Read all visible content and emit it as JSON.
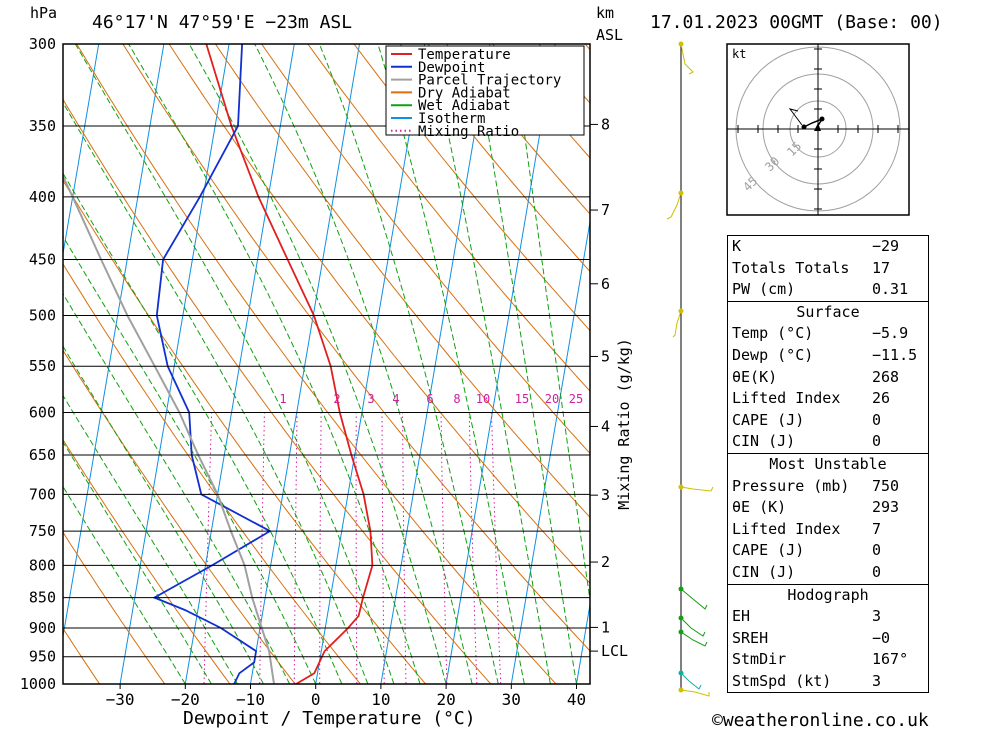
{
  "header": {
    "hpa_label": "hPa",
    "location": "46°17'N  47°59'E  −23m  ASL",
    "km_label": "km",
    "asl_label": "ASL",
    "datetime": "17.01.2023  00GMT  (Base: 00)"
  },
  "chart_data": {
    "type": "line",
    "title": "46°17'N  47°59'E  −23m  ASL",
    "xlabel": "Dewpoint / Temperature (°C)",
    "ylabel": "hPa",
    "xlim": [
      -40,
      40
    ],
    "pressure_levels": [
      300,
      350,
      400,
      450,
      500,
      550,
      600,
      650,
      700,
      750,
      800,
      850,
      900,
      950,
      1000
    ],
    "x_ticks": [
      -30,
      -20,
      -10,
      0,
      10,
      20,
      30,
      40
    ],
    "km_ticks": [
      {
        "km": "8",
        "p": 349
      },
      {
        "km": "7",
        "p": 410
      },
      {
        "km": "6",
        "p": 471
      },
      {
        "km": "5",
        "p": 540
      },
      {
        "km": "4",
        "p": 616
      },
      {
        "km": "3",
        "p": 701
      },
      {
        "km": "2",
        "p": 795
      },
      {
        "km": "1",
        "p": 899
      },
      {
        "km": "LCL",
        "p": 940
      }
    ],
    "mixing_ratio_label": "Mixing Ratio (g/kg)",
    "mixing_ratio_values": [
      "1",
      "2",
      "3",
      "4",
      "6",
      "8",
      "10",
      "15",
      "20",
      "25"
    ],
    "legend": [
      "Temperature",
      "Dewpoint",
      "Parcel Trajectory",
      "Dry Adiabat",
      "Wet Adiabat",
      "Isotherm",
      "Mixing Ratio"
    ],
    "colors": {
      "temperature": "#e02020",
      "dewpoint": "#1030d0",
      "parcel": "#a0a0a0",
      "dry_adiabat": "#d87010",
      "wet_adiabat": "#10a010",
      "isotherm": "#1090e0",
      "mixing_ratio": "#d020a0",
      "wind": "#d0c000"
    },
    "series": [
      {
        "name": "Temperature",
        "points": [
          [
            1019,
            -5.9
          ],
          [
            1000,
            -3
          ],
          [
            980,
            -0.5
          ],
          [
            960,
            0
          ],
          [
            940,
            0.5
          ],
          [
            920,
            2
          ],
          [
            900,
            3.5
          ],
          [
            880,
            4.8
          ],
          [
            850,
            5
          ],
          [
            800,
            5.6
          ],
          [
            750,
            4.4
          ],
          [
            700,
            2.4
          ],
          [
            650,
            -0.5
          ],
          [
            600,
            -3.4
          ],
          [
            550,
            -6
          ],
          [
            500,
            -9.9
          ],
          [
            450,
            -15.4
          ],
          [
            400,
            -21.5
          ],
          [
            350,
            -27.5
          ],
          [
            300,
            -33.5
          ]
        ]
      },
      {
        "name": "Dewpoint",
        "points": [
          [
            1019,
            -11.5
          ],
          [
            1000,
            -12.5
          ],
          [
            980,
            -12
          ],
          [
            960,
            -10
          ],
          [
            940,
            -10
          ],
          [
            900,
            -16
          ],
          [
            870,
            -22
          ],
          [
            850,
            -27
          ],
          [
            800,
            -19
          ],
          [
            750,
            -11
          ],
          [
            700,
            -22.5
          ],
          [
            650,
            -25
          ],
          [
            600,
            -26.5
          ],
          [
            550,
            -31
          ],
          [
            500,
            -34
          ],
          [
            450,
            -34.5
          ],
          [
            400,
            -30.5
          ],
          [
            350,
            -26.5
          ],
          [
            300,
            -28
          ]
        ]
      },
      {
        "name": "Parcel Trajectory",
        "points": [
          [
            1019,
            -5.9
          ],
          [
            940,
            -8
          ],
          [
            850,
            -12
          ],
          [
            800,
            -14
          ],
          [
            750,
            -17
          ],
          [
            700,
            -20
          ],
          [
            650,
            -24
          ],
          [
            600,
            -28
          ],
          [
            550,
            -33
          ],
          [
            500,
            -38.5
          ],
          [
            450,
            -44
          ],
          [
            400,
            -50
          ],
          [
            350,
            -57
          ],
          [
            300,
            -65
          ]
        ]
      }
    ],
    "grid": true
  },
  "indices": [
    {
      "label": "K",
      "value": "−29"
    },
    {
      "label": "Totals Totals",
      "value": "17"
    },
    {
      "label": "PW (cm)",
      "value": "0.31"
    }
  ],
  "surface": {
    "title": "Surface",
    "rows": [
      {
        "label": "Temp (°C)",
        "value": "−5.9"
      },
      {
        "label": "Dewp (°C)",
        "value": "−11.5"
      },
      {
        "label": "θE(K)",
        "value": "268"
      },
      {
        "label": "Lifted Index",
        "value": "26"
      },
      {
        "label": "CAPE (J)",
        "value": "0"
      },
      {
        "label": "CIN (J)",
        "value": "0"
      }
    ]
  },
  "most_unstable": {
    "title": "Most Unstable",
    "rows": [
      {
        "label": "Pressure (mb)",
        "value": "750"
      },
      {
        "label": "θE (K)",
        "value": "293"
      },
      {
        "label": "Lifted Index",
        "value": "7"
      },
      {
        "label": "CAPE (J)",
        "value": "0"
      },
      {
        "label": "CIN (J)",
        "value": "0"
      }
    ]
  },
  "hodograph": {
    "title": "Hodograph",
    "rows": [
      {
        "label": "EH",
        "value": "3"
      },
      {
        "label": "SREH",
        "value": "−0"
      },
      {
        "label": "StmDir",
        "value": "167°"
      },
      {
        "label": "StmSpd (kt)",
        "value": "3"
      }
    ],
    "unit_label": "kt",
    "rings": [
      "15",
      "30",
      "45"
    ]
  },
  "footer": {
    "credit": "©weatheronline.co.uk"
  }
}
